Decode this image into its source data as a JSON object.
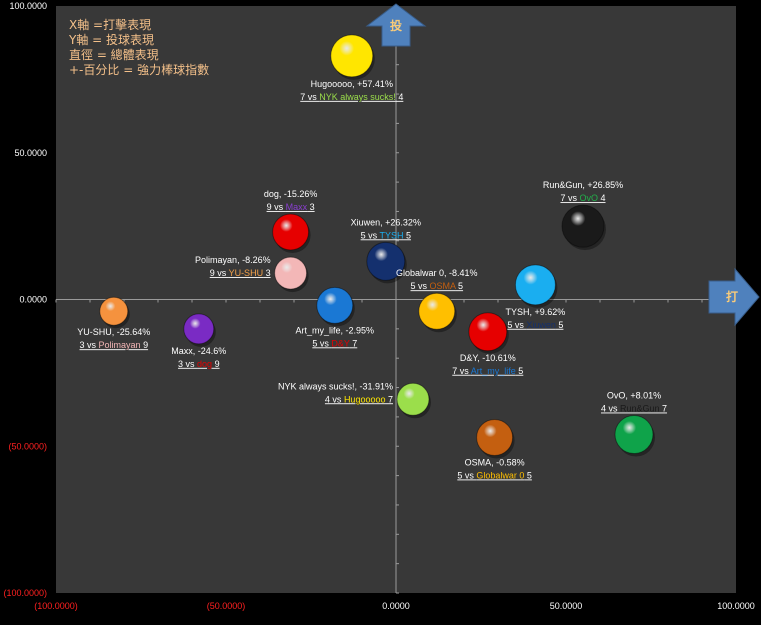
{
  "chart_data": {
    "type": "bubble-scatter",
    "legend": {
      "lines": [
        "X軸 =打擊表現",
        "Y軸 = 投球表現",
        "直徑 = 總體表現",
        "+-百分比 = 強力棒球指數"
      ],
      "color": "#f4c08a"
    },
    "axis_arrows": {
      "x_label": "打",
      "y_label": "投",
      "color": "#4f81bd"
    },
    "xlim": [
      -100,
      100
    ],
    "ylim": [
      -100,
      100
    ],
    "x_ticks": [
      {
        "value": -100,
        "label": "(100.0000)",
        "negative": true
      },
      {
        "value": -50,
        "label": "(50.0000)",
        "negative": true
      },
      {
        "value": 0,
        "label": "0.0000",
        "negative": false
      },
      {
        "value": 50,
        "label": "50.0000",
        "negative": false
      },
      {
        "value": 100,
        "label": "100.0000",
        "negative": false
      }
    ],
    "y_ticks": [
      {
        "value": 100,
        "label": "100.0000",
        "negative": false
      },
      {
        "value": 50,
        "label": "50.0000",
        "negative": false
      },
      {
        "value": 0,
        "label": "0.0000",
        "negative": false
      },
      {
        "value": -50,
        "label": "(50.0000)",
        "negative": true
      },
      {
        "value": -100,
        "label": "(100.0000)",
        "negative": true
      }
    ],
    "colors": {
      "plot_bg": "#383838",
      "axis": "#9a9a9a",
      "tick_text": "#ffffff",
      "tick_negative": "#ff2020",
      "label_text": "#ffffff"
    },
    "points": [
      {
        "name": "Hugooooo",
        "pct": "+57.41%",
        "x": -13,
        "y": 83,
        "size": 21,
        "color": "#ffe600",
        "label_pos": "below",
        "m_left": "7",
        "vs": "vs",
        "opp": "NYK always sucks!",
        "opp_color": "#9bde4b",
        "m_right": "4"
      },
      {
        "name": "dog",
        "pct": "-15.26%",
        "x": -31,
        "y": 23,
        "size": 18,
        "color": "#e60000",
        "label_pos": "above",
        "m_left": "9",
        "vs": "vs",
        "opp": "Maxx",
        "opp_color": "#8a3fd1",
        "m_right": "3"
      },
      {
        "name": "Polimayan",
        "pct": "-8.26%",
        "x": -31,
        "y": 9,
        "size": 16,
        "color": "#f3b7b7",
        "label_pos": "left",
        "m_left": "9",
        "vs": "vs",
        "opp": "YU-SHU",
        "opp_color": "#f5a24a",
        "m_right": "3"
      },
      {
        "name": "YU-SHU",
        "pct": "-25.64%",
        "x": -83,
        "y": -4,
        "size": 14,
        "color": "#f5923e",
        "label_pos": "below",
        "m_left": "3",
        "vs": "vs",
        "opp": "Polimayan",
        "opp_color": "#f3b7b7",
        "m_right": "9"
      },
      {
        "name": "Maxx",
        "pct": "-24.6%",
        "x": -58,
        "y": -10,
        "size": 15,
        "color": "#7a2bc4",
        "label_pos": "below",
        "m_left": "3",
        "vs": "vs",
        "opp": "dog",
        "opp_color": "#e60000",
        "m_right": "9"
      },
      {
        "name": "Art_my_life",
        "pct": "-2.95%",
        "x": -18,
        "y": -2,
        "size": 18,
        "color": "#1a78d4",
        "label_pos": "below",
        "m_left": "5",
        "vs": "vs",
        "opp": "D&Y",
        "opp_color": "#e60000",
        "m_right": "7"
      },
      {
        "name": "Xiuwen",
        "pct": "+26.32%",
        "x": -3,
        "y": 13,
        "size": 19,
        "color": "#14306e",
        "label_pos": "above",
        "m_left": "5",
        "vs": "vs",
        "opp": "TYSH",
        "opp_color": "#1aaef0",
        "m_right": "5"
      },
      {
        "name": "Globalwar 0",
        "pct": "-8.41%",
        "x": 12,
        "y": -4,
        "size": 18,
        "color": "#ffbf00",
        "label_pos": "above",
        "m_left": "5",
        "vs": "vs",
        "opp": "OSMA",
        "opp_color": "#c45f10",
        "m_right": "5"
      },
      {
        "name": "D&Y",
        "pct": "-10.61%",
        "x": 27,
        "y": -11,
        "size": 19,
        "color": "#e60000",
        "label_pos": "below",
        "m_left": "7",
        "vs": "vs",
        "opp": "Art_my_life",
        "opp_color": "#1a78d4",
        "m_right": "5"
      },
      {
        "name": "TYSH",
        "pct": "+9.62%",
        "x": 41,
        "y": 5,
        "size": 20,
        "color": "#1aaef0",
        "label_pos": "below",
        "m_left": "5",
        "vs": "vs",
        "opp": "Xiuwen",
        "opp_color": "#14306e",
        "m_right": "5"
      },
      {
        "name": "Run&Gun",
        "pct": "+26.85%",
        "x": 55,
        "y": 25,
        "size": 21,
        "color": "#1a1a1a",
        "label_pos": "above",
        "m_left": "7",
        "vs": "vs",
        "opp": "OvO",
        "opp_color": "#22b04a",
        "m_right": "4"
      },
      {
        "name": "NYK always sucks!",
        "pct": "-31.91%",
        "x": 5,
        "y": -34,
        "size": 16,
        "color": "#9bde4b",
        "label_pos": "left",
        "m_left": "4",
        "vs": "vs",
        "opp": "Hugooooo",
        "opp_color": "#ffe600",
        "m_right": "7"
      },
      {
        "name": "OSMA",
        "pct": "-0.58%",
        "x": 29,
        "y": -47,
        "size": 18,
        "color": "#c45f10",
        "label_pos": "below",
        "m_left": "5",
        "vs": "vs",
        "opp": "Globalwar 0",
        "opp_color": "#ffbf00",
        "m_right": "5"
      },
      {
        "name": "OvO",
        "pct": "+8.01%",
        "x": 70,
        "y": -46,
        "size": 19,
        "color": "#0fa34a",
        "label_pos": "above",
        "m_left": "4",
        "vs": "vs",
        "opp": "Run&Gun",
        "opp_color": "#1a1a1a",
        "m_right": "7"
      }
    ]
  }
}
